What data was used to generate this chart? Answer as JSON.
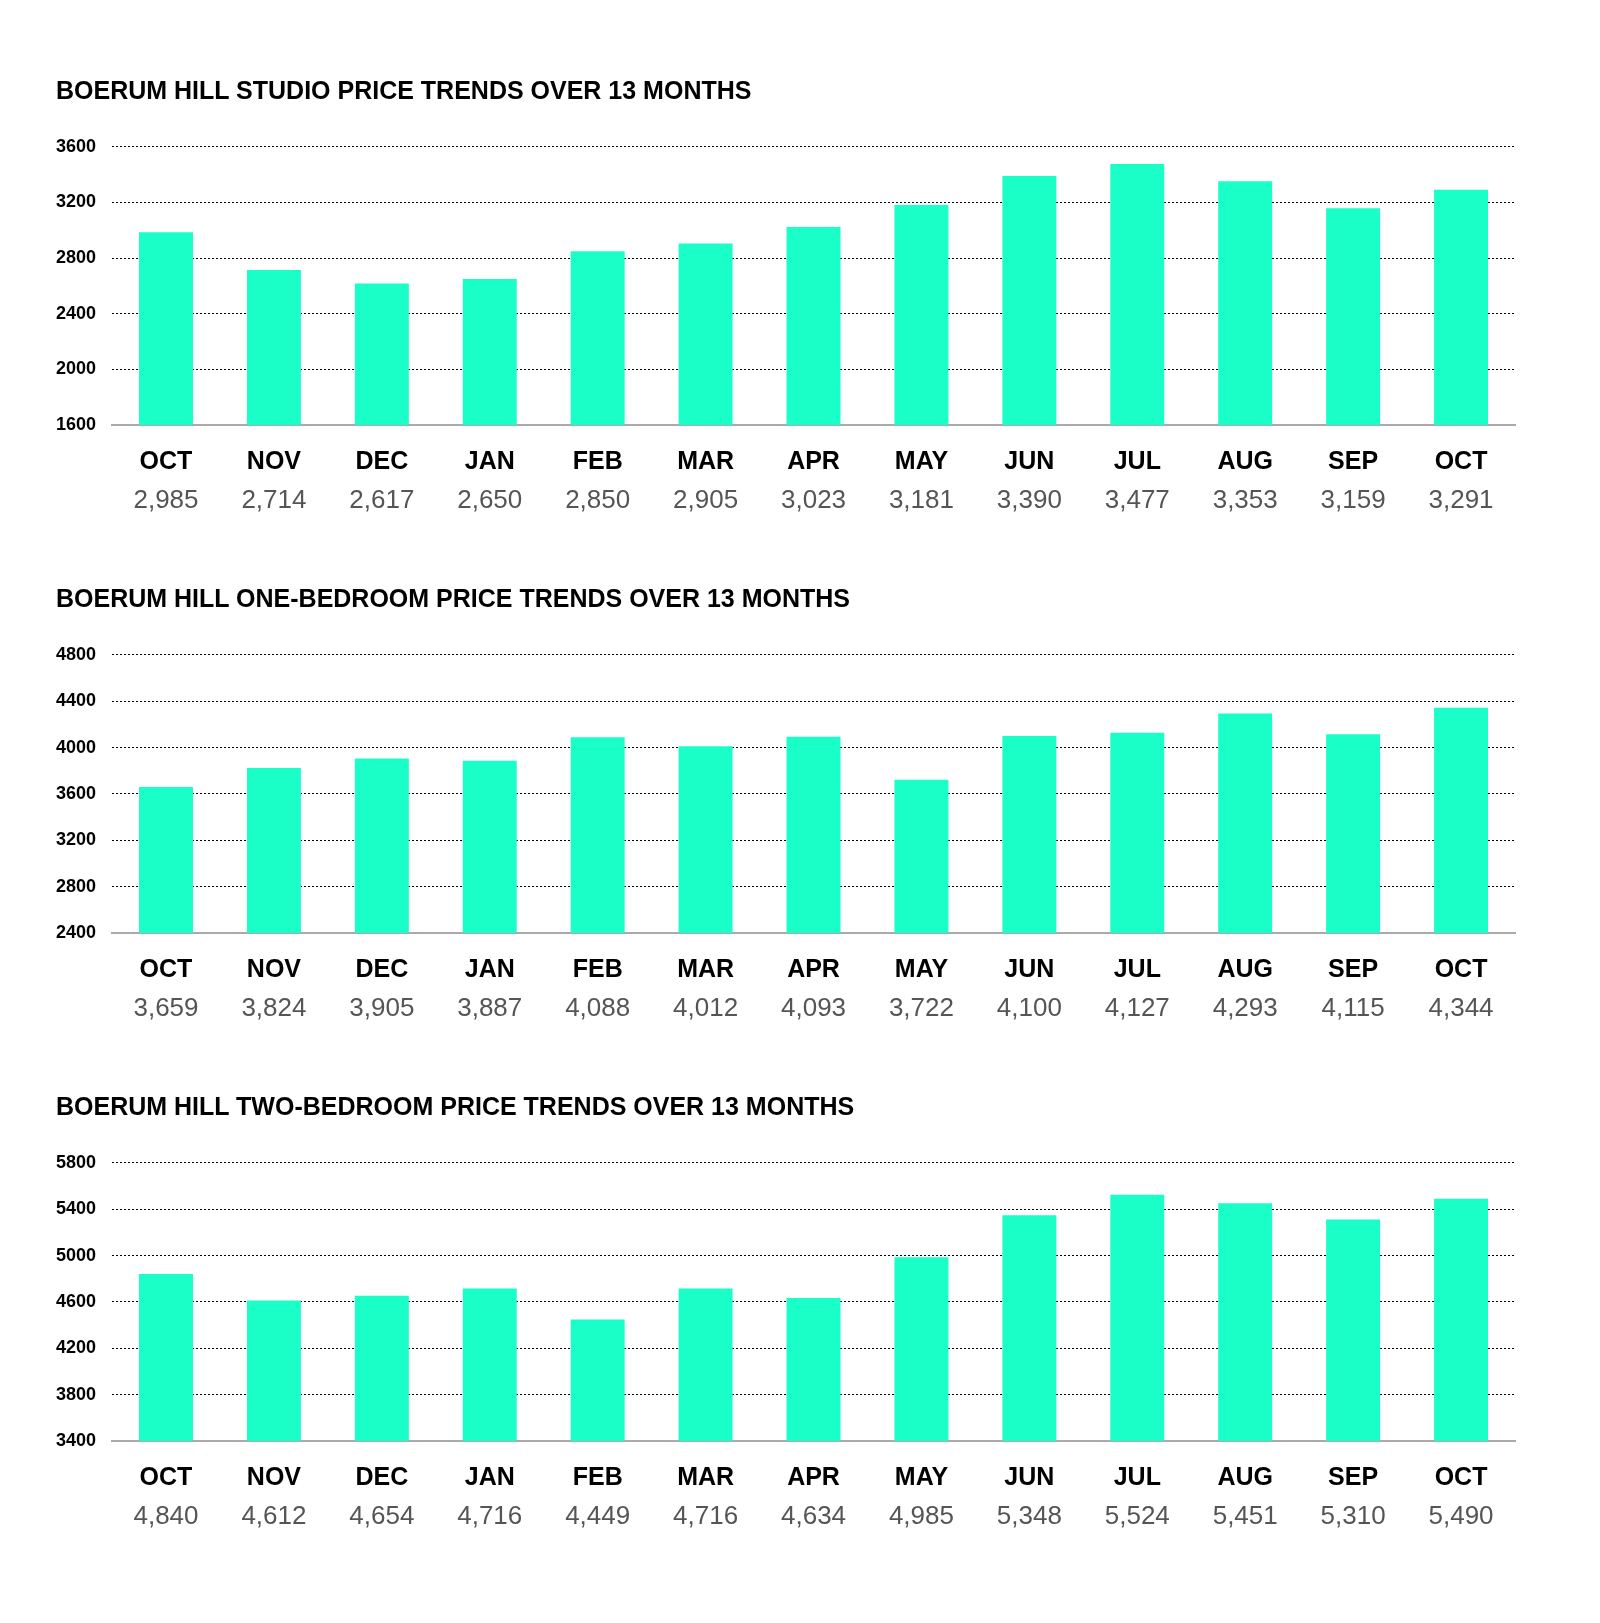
{
  "chart_data": [
    {
      "type": "bar",
      "title": "BOERUM HILL STUDIO PRICE TRENDS OVER 13 MONTHS",
      "categories": [
        "OCT",
        "NOV",
        "DEC",
        "JAN",
        "FEB",
        "MAR",
        "APR",
        "MAY",
        "JUN",
        "JUL",
        "AUG",
        "SEP",
        "OCT"
      ],
      "values": [
        2985,
        2714,
        2617,
        2650,
        2850,
        2905,
        3023,
        3181,
        3390,
        3477,
        3353,
        3159,
        3291
      ],
      "value_labels": [
        "2,985",
        "2,714",
        "2,617",
        "2,650",
        "2,850",
        "2,905",
        "3,023",
        "3,181",
        "3,390",
        "3,477",
        "3,353",
        "3,159",
        "3,291"
      ],
      "color": "#1affc8",
      "ylim": [
        1600,
        3600
      ],
      "yticks": [
        1600,
        2000,
        2400,
        2800,
        3200,
        3600
      ],
      "grid": "y",
      "legend": false
    },
    {
      "type": "bar",
      "title": "BOERUM HILL ONE-BEDROOM PRICE TRENDS OVER 13 MONTHS",
      "categories": [
        "OCT",
        "NOV",
        "DEC",
        "JAN",
        "FEB",
        "MAR",
        "APR",
        "MAY",
        "JUN",
        "JUL",
        "AUG",
        "SEP",
        "OCT"
      ],
      "values": [
        3659,
        3824,
        3905,
        3887,
        4088,
        4012,
        4093,
        3722,
        4100,
        4127,
        4293,
        4115,
        4344
      ],
      "value_labels": [
        "3,659",
        "3,824",
        "3,905",
        "3,887",
        "4,088",
        "4,012",
        "4,093",
        "3,722",
        "4,100",
        "4,127",
        "4,293",
        "4,115",
        "4,344"
      ],
      "color": "#1affc8",
      "ylim": [
        2400,
        4800
      ],
      "yticks": [
        2400,
        2800,
        3200,
        3600,
        4000,
        4400,
        4800
      ],
      "grid": "y",
      "legend": false
    },
    {
      "type": "bar",
      "title": "BOERUM HILL TWO-BEDROOM PRICE TRENDS OVER 13 MONTHS",
      "categories": [
        "OCT",
        "NOV",
        "DEC",
        "JAN",
        "FEB",
        "MAR",
        "APR",
        "MAY",
        "JUN",
        "JUL",
        "AUG",
        "SEP",
        "OCT"
      ],
      "values": [
        4840,
        4612,
        4654,
        4716,
        4449,
        4716,
        4634,
        4985,
        5348,
        5524,
        5451,
        5310,
        5490
      ],
      "value_labels": [
        "4,840",
        "4,612",
        "4,654",
        "4,716",
        "4,449",
        "4,716",
        "4,634",
        "4,985",
        "5,348",
        "5,524",
        "5,451",
        "5,310",
        "5,490"
      ],
      "color": "#1affc8",
      "ylim": [
        3400,
        5800
      ],
      "yticks": [
        3400,
        3800,
        4200,
        4600,
        5000,
        5400,
        5800
      ],
      "grid": "y",
      "legend": false
    }
  ]
}
